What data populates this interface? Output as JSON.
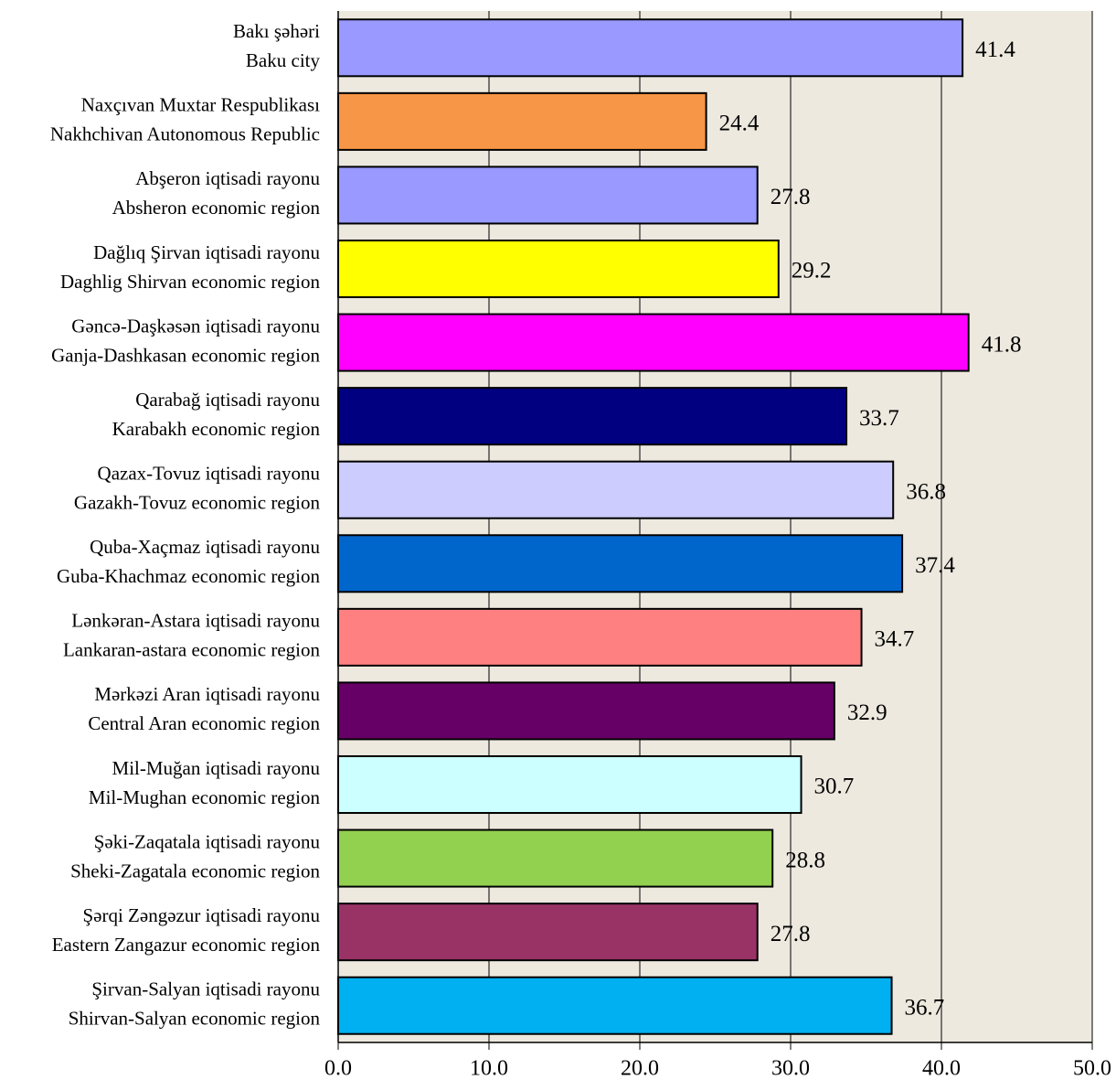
{
  "chart_data": {
    "type": "bar",
    "orientation": "horizontal",
    "categories": [
      [
        "Bakı şəhəri",
        "Baku city"
      ],
      [
        "Naxçıvan Muxtar Respublikası",
        "Nakhchivan Autonomous Republic"
      ],
      [
        "Abşeron iqtisadi rayonu",
        "Absheron economic region"
      ],
      [
        "Dağlıq Şirvan iqtisadi rayonu",
        "Daghlig Shirvan economic region"
      ],
      [
        "Gəncə-Daşkəsən iqtisadi rayonu",
        "Ganja-Dashkasan  economic region"
      ],
      [
        "Qarabağ iqtisadi rayonu",
        "Karabakh economic region"
      ],
      [
        "Qazax-Tovuz iqtisadi rayonu",
        "Gazakh-Tovuz economic region"
      ],
      [
        "Quba-Xaçmaz iqtisadi rayonu",
        "Guba-Khachmaz economic region"
      ],
      [
        "Lənkəran-Astara  iqtisadi rayonu",
        "Lankaran-astara  economic region"
      ],
      [
        "Mərkəzi Aran iqtisadi rayonu",
        "Central Aran economic region"
      ],
      [
        "Mil-Muğan iqtisadi rayonu",
        "Mil-Mughan economic region"
      ],
      [
        "Şəki-Zaqatala  iqtisadi rayonu",
        "Sheki-Zagatala  economic region"
      ],
      [
        "Şərqi Zəngəzur iqtisadi rayonu",
        "Eastern Zangazur economic region"
      ],
      [
        "Şirvan-Salyan iqtisadi rayonu",
        "Shirvan-Salyan economic region"
      ]
    ],
    "values": [
      41.4,
      24.4,
      27.8,
      29.2,
      41.8,
      33.7,
      36.8,
      37.4,
      34.7,
      32.9,
      30.7,
      28.8,
      27.8,
      36.7
    ],
    "colors": [
      "#9999ff",
      "#f79646",
      "#9999ff",
      "#ffff00",
      "#ff00ff",
      "#000080",
      "#ccccff",
      "#0066cc",
      "#ff8080",
      "#660066",
      "#ccffff",
      "#92d050",
      "#993366",
      "#00b0f0"
    ],
    "xlim": [
      0,
      50
    ],
    "xticks": [
      {
        "value": 0,
        "label": "0.0"
      },
      {
        "value": 10,
        "label": "10.0"
      },
      {
        "value": 20,
        "label": "20.0"
      },
      {
        "value": 30,
        "label": "30.0"
      },
      {
        "value": 40,
        "label": "40.0"
      },
      {
        "value": 50,
        "label": "50.0"
      }
    ],
    "grid": true
  }
}
